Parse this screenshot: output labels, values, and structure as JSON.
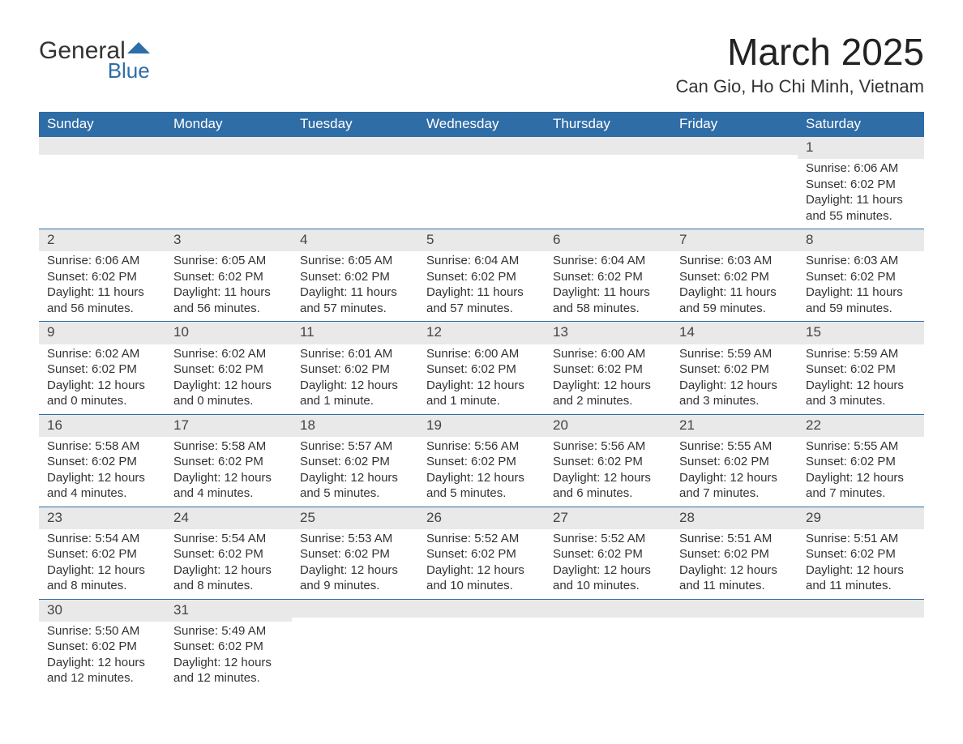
{
  "logo": {
    "word1": "General",
    "word2": "Blue",
    "accent_color": "#2f6da7"
  },
  "title": "March 2025",
  "location": "Can Gio, Ho Chi Minh, Vietnam",
  "colors": {
    "header_bg": "#2f6da7",
    "header_text": "#ffffff",
    "daynum_bg": "#e9e9e9",
    "row_border": "#2f6da7",
    "body_text": "#333333",
    "page_bg": "#ffffff"
  },
  "typography": {
    "title_fontsize": 46,
    "location_fontsize": 22,
    "dayheader_fontsize": 17,
    "daynum_fontsize": 17,
    "body_fontsize": 15,
    "font_family": "Arial, Helvetica, sans-serif"
  },
  "layout": {
    "columns": 7,
    "rows": 6,
    "start_day_index": 6
  },
  "day_headers": [
    "Sunday",
    "Monday",
    "Tuesday",
    "Wednesday",
    "Thursday",
    "Friday",
    "Saturday"
  ],
  "weeks": [
    [
      {
        "n": "",
        "sunrise": "",
        "sunset": "",
        "daylight": ""
      },
      {
        "n": "",
        "sunrise": "",
        "sunset": "",
        "daylight": ""
      },
      {
        "n": "",
        "sunrise": "",
        "sunset": "",
        "daylight": ""
      },
      {
        "n": "",
        "sunrise": "",
        "sunset": "",
        "daylight": ""
      },
      {
        "n": "",
        "sunrise": "",
        "sunset": "",
        "daylight": ""
      },
      {
        "n": "",
        "sunrise": "",
        "sunset": "",
        "daylight": ""
      },
      {
        "n": "1",
        "sunrise": "Sunrise: 6:06 AM",
        "sunset": "Sunset: 6:02 PM",
        "daylight": "Daylight: 11 hours and 55 minutes."
      }
    ],
    [
      {
        "n": "2",
        "sunrise": "Sunrise: 6:06 AM",
        "sunset": "Sunset: 6:02 PM",
        "daylight": "Daylight: 11 hours and 56 minutes."
      },
      {
        "n": "3",
        "sunrise": "Sunrise: 6:05 AM",
        "sunset": "Sunset: 6:02 PM",
        "daylight": "Daylight: 11 hours and 56 minutes."
      },
      {
        "n": "4",
        "sunrise": "Sunrise: 6:05 AM",
        "sunset": "Sunset: 6:02 PM",
        "daylight": "Daylight: 11 hours and 57 minutes."
      },
      {
        "n": "5",
        "sunrise": "Sunrise: 6:04 AM",
        "sunset": "Sunset: 6:02 PM",
        "daylight": "Daylight: 11 hours and 57 minutes."
      },
      {
        "n": "6",
        "sunrise": "Sunrise: 6:04 AM",
        "sunset": "Sunset: 6:02 PM",
        "daylight": "Daylight: 11 hours and 58 minutes."
      },
      {
        "n": "7",
        "sunrise": "Sunrise: 6:03 AM",
        "sunset": "Sunset: 6:02 PM",
        "daylight": "Daylight: 11 hours and 59 minutes."
      },
      {
        "n": "8",
        "sunrise": "Sunrise: 6:03 AM",
        "sunset": "Sunset: 6:02 PM",
        "daylight": "Daylight: 11 hours and 59 minutes."
      }
    ],
    [
      {
        "n": "9",
        "sunrise": "Sunrise: 6:02 AM",
        "sunset": "Sunset: 6:02 PM",
        "daylight": "Daylight: 12 hours and 0 minutes."
      },
      {
        "n": "10",
        "sunrise": "Sunrise: 6:02 AM",
        "sunset": "Sunset: 6:02 PM",
        "daylight": "Daylight: 12 hours and 0 minutes."
      },
      {
        "n": "11",
        "sunrise": "Sunrise: 6:01 AM",
        "sunset": "Sunset: 6:02 PM",
        "daylight": "Daylight: 12 hours and 1 minute."
      },
      {
        "n": "12",
        "sunrise": "Sunrise: 6:00 AM",
        "sunset": "Sunset: 6:02 PM",
        "daylight": "Daylight: 12 hours and 1 minute."
      },
      {
        "n": "13",
        "sunrise": "Sunrise: 6:00 AM",
        "sunset": "Sunset: 6:02 PM",
        "daylight": "Daylight: 12 hours and 2 minutes."
      },
      {
        "n": "14",
        "sunrise": "Sunrise: 5:59 AM",
        "sunset": "Sunset: 6:02 PM",
        "daylight": "Daylight: 12 hours and 3 minutes."
      },
      {
        "n": "15",
        "sunrise": "Sunrise: 5:59 AM",
        "sunset": "Sunset: 6:02 PM",
        "daylight": "Daylight: 12 hours and 3 minutes."
      }
    ],
    [
      {
        "n": "16",
        "sunrise": "Sunrise: 5:58 AM",
        "sunset": "Sunset: 6:02 PM",
        "daylight": "Daylight: 12 hours and 4 minutes."
      },
      {
        "n": "17",
        "sunrise": "Sunrise: 5:58 AM",
        "sunset": "Sunset: 6:02 PM",
        "daylight": "Daylight: 12 hours and 4 minutes."
      },
      {
        "n": "18",
        "sunrise": "Sunrise: 5:57 AM",
        "sunset": "Sunset: 6:02 PM",
        "daylight": "Daylight: 12 hours and 5 minutes."
      },
      {
        "n": "19",
        "sunrise": "Sunrise: 5:56 AM",
        "sunset": "Sunset: 6:02 PM",
        "daylight": "Daylight: 12 hours and 5 minutes."
      },
      {
        "n": "20",
        "sunrise": "Sunrise: 5:56 AM",
        "sunset": "Sunset: 6:02 PM",
        "daylight": "Daylight: 12 hours and 6 minutes."
      },
      {
        "n": "21",
        "sunrise": "Sunrise: 5:55 AM",
        "sunset": "Sunset: 6:02 PM",
        "daylight": "Daylight: 12 hours and 7 minutes."
      },
      {
        "n": "22",
        "sunrise": "Sunrise: 5:55 AM",
        "sunset": "Sunset: 6:02 PM",
        "daylight": "Daylight: 12 hours and 7 minutes."
      }
    ],
    [
      {
        "n": "23",
        "sunrise": "Sunrise: 5:54 AM",
        "sunset": "Sunset: 6:02 PM",
        "daylight": "Daylight: 12 hours and 8 minutes."
      },
      {
        "n": "24",
        "sunrise": "Sunrise: 5:54 AM",
        "sunset": "Sunset: 6:02 PM",
        "daylight": "Daylight: 12 hours and 8 minutes."
      },
      {
        "n": "25",
        "sunrise": "Sunrise: 5:53 AM",
        "sunset": "Sunset: 6:02 PM",
        "daylight": "Daylight: 12 hours and 9 minutes."
      },
      {
        "n": "26",
        "sunrise": "Sunrise: 5:52 AM",
        "sunset": "Sunset: 6:02 PM",
        "daylight": "Daylight: 12 hours and 10 minutes."
      },
      {
        "n": "27",
        "sunrise": "Sunrise: 5:52 AM",
        "sunset": "Sunset: 6:02 PM",
        "daylight": "Daylight: 12 hours and 10 minutes."
      },
      {
        "n": "28",
        "sunrise": "Sunrise: 5:51 AM",
        "sunset": "Sunset: 6:02 PM",
        "daylight": "Daylight: 12 hours and 11 minutes."
      },
      {
        "n": "29",
        "sunrise": "Sunrise: 5:51 AM",
        "sunset": "Sunset: 6:02 PM",
        "daylight": "Daylight: 12 hours and 11 minutes."
      }
    ],
    [
      {
        "n": "30",
        "sunrise": "Sunrise: 5:50 AM",
        "sunset": "Sunset: 6:02 PM",
        "daylight": "Daylight: 12 hours and 12 minutes."
      },
      {
        "n": "31",
        "sunrise": "Sunrise: 5:49 AM",
        "sunset": "Sunset: 6:02 PM",
        "daylight": "Daylight: 12 hours and 12 minutes."
      },
      {
        "n": "",
        "sunrise": "",
        "sunset": "",
        "daylight": ""
      },
      {
        "n": "",
        "sunrise": "",
        "sunset": "",
        "daylight": ""
      },
      {
        "n": "",
        "sunrise": "",
        "sunset": "",
        "daylight": ""
      },
      {
        "n": "",
        "sunrise": "",
        "sunset": "",
        "daylight": ""
      },
      {
        "n": "",
        "sunrise": "",
        "sunset": "",
        "daylight": ""
      }
    ]
  ]
}
